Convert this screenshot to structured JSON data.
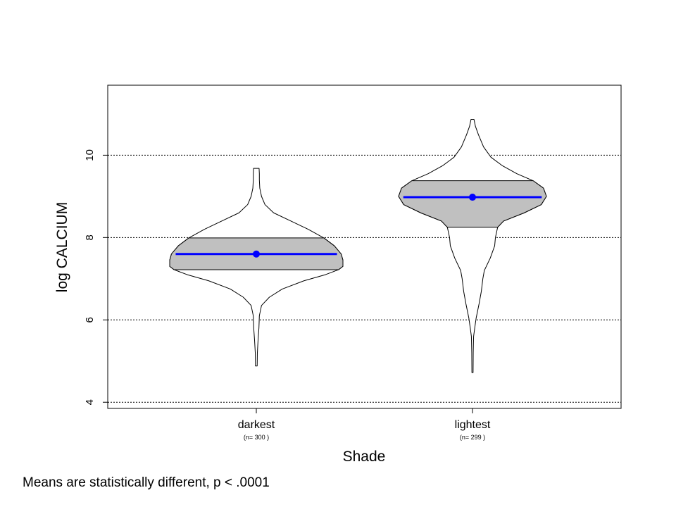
{
  "chart_data": {
    "type": "violin",
    "ylabel": "log CALCIUM",
    "xlabel": "Shade",
    "ylim": [
      3.85,
      11.7
    ],
    "yticks": [
      4,
      6,
      8,
      10
    ],
    "grid": "horizontal-dotted",
    "fill_color": "#c0c0c0",
    "mean_color": "#0000ff",
    "categories": [
      {
        "name": "darkest",
        "n_label": "(n= 300 )",
        "mean": 7.6,
        "q1": 7.22,
        "q3": 7.99,
        "min": 4.88,
        "max": 9.68,
        "profile": [
          [
            4.88,
            0.01
          ],
          [
            5.2,
            0.012
          ],
          [
            5.5,
            0.02
          ],
          [
            5.8,
            0.03
          ],
          [
            6.1,
            0.035
          ],
          [
            6.35,
            0.06
          ],
          [
            6.55,
            0.15
          ],
          [
            6.75,
            0.3
          ],
          [
            6.95,
            0.55
          ],
          [
            7.1,
            0.8
          ],
          [
            7.22,
            0.95
          ],
          [
            7.3,
            1.0
          ],
          [
            7.45,
            1.0
          ],
          [
            7.6,
            0.98
          ],
          [
            7.8,
            0.9
          ],
          [
            7.99,
            0.78
          ],
          [
            8.2,
            0.6
          ],
          [
            8.4,
            0.4
          ],
          [
            8.6,
            0.2
          ],
          [
            8.8,
            0.1
          ],
          [
            9.0,
            0.06
          ],
          [
            9.2,
            0.04
          ],
          [
            9.4,
            0.035
          ],
          [
            9.55,
            0.035
          ],
          [
            9.68,
            0.032
          ]
        ]
      },
      {
        "name": "lightest",
        "n_label": "(n= 299 )",
        "mean": 8.98,
        "q1": 8.25,
        "q3": 9.38,
        "min": 4.72,
        "max": 10.87,
        "profile": [
          [
            4.72,
            0.008
          ],
          [
            5.2,
            0.01
          ],
          [
            5.6,
            0.015
          ],
          [
            5.8,
            0.03
          ],
          [
            6.05,
            0.05
          ],
          [
            6.4,
            0.09
          ],
          [
            6.7,
            0.12
          ],
          [
            7.0,
            0.14
          ],
          [
            7.2,
            0.16
          ],
          [
            7.5,
            0.24
          ],
          [
            7.8,
            0.3
          ],
          [
            8.0,
            0.31
          ],
          [
            8.25,
            0.34
          ],
          [
            8.4,
            0.42
          ],
          [
            8.6,
            0.7
          ],
          [
            8.8,
            0.93
          ],
          [
            9.0,
            1.0
          ],
          [
            9.2,
            0.96
          ],
          [
            9.38,
            0.82
          ],
          [
            9.55,
            0.6
          ],
          [
            9.75,
            0.4
          ],
          [
            9.95,
            0.25
          ],
          [
            10.2,
            0.15
          ],
          [
            10.5,
            0.08
          ],
          [
            10.7,
            0.04
          ],
          [
            10.87,
            0.02
          ]
        ]
      }
    ]
  },
  "footnote": "Means are statistically different,  p < .0001"
}
